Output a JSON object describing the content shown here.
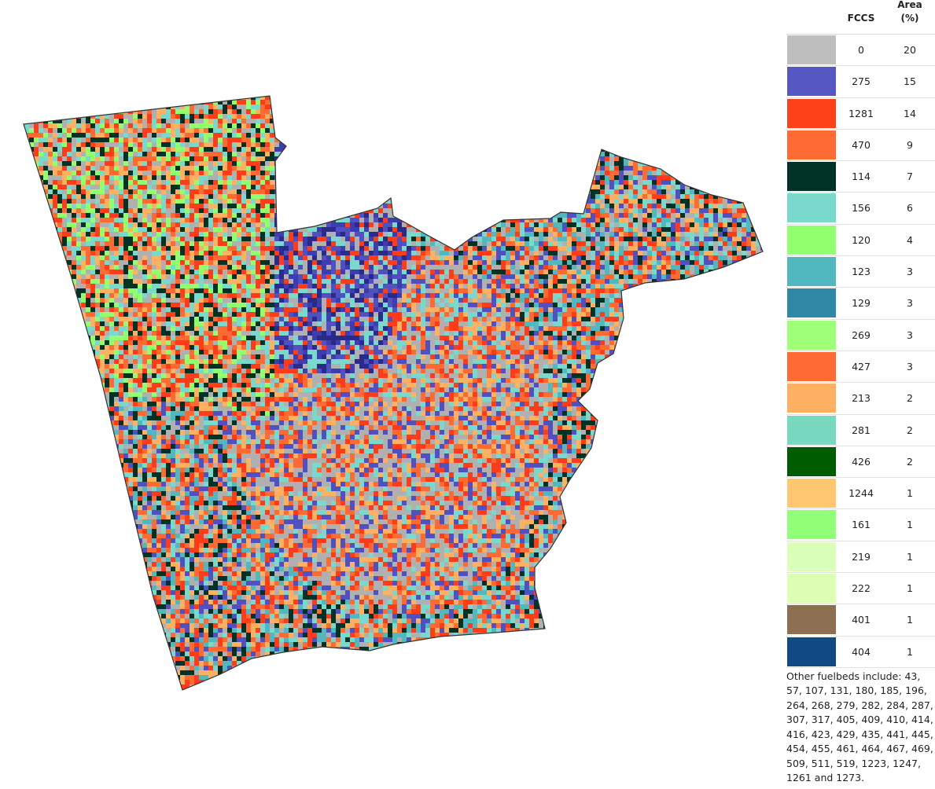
{
  "legend": {
    "header_fccs": "FCCS",
    "header_area_line1": "Area",
    "header_area_line2": "(%)",
    "rows": [
      {
        "fccs": "0",
        "area": "20",
        "color": "#bebebe"
      },
      {
        "fccs": "275",
        "area": "15",
        "color": "#5757c4"
      },
      {
        "fccs": "1281",
        "area": "14",
        "color": "#ff4117"
      },
      {
        "fccs": "470",
        "area": "9",
        "color": "#ff6a33"
      },
      {
        "fccs": "114",
        "area": "7",
        "color": "#003326"
      },
      {
        "fccs": "156",
        "area": "6",
        "color": "#78d9cc"
      },
      {
        "fccs": "120",
        "area": "4",
        "color": "#91ff6e"
      },
      {
        "fccs": "123",
        "area": "3",
        "color": "#52b8c0"
      },
      {
        "fccs": "129",
        "area": "3",
        "color": "#2e88a6"
      },
      {
        "fccs": "269",
        "area": "3",
        "color": "#a0ff78"
      },
      {
        "fccs": "427",
        "area": "3",
        "color": "#ff6a33"
      },
      {
        "fccs": "213",
        "area": "2",
        "color": "#ffb061"
      },
      {
        "fccs": "281",
        "area": "2",
        "color": "#78d9c0"
      },
      {
        "fccs": "426",
        "area": "2",
        "color": "#005c00"
      },
      {
        "fccs": "1244",
        "area": "1",
        "color": "#ffc770"
      },
      {
        "fccs": "161",
        "area": "1",
        "color": "#91ff78"
      },
      {
        "fccs": "219",
        "area": "1",
        "color": "#d9ffb8"
      },
      {
        "fccs": "222",
        "area": "1",
        "color": "#dcffb4"
      },
      {
        "fccs": "401",
        "area": "1",
        "color": "#8c7051"
      },
      {
        "fccs": "404",
        "area": "1",
        "color": "#124a85"
      }
    ],
    "other_note": "Other fuelbeds include: 43, 57, 107, 131, 180, 185, 196, 264, 268, 279, 282, 284, 287, 307, 317, 405, 409, 410, 414, 416, 423, 429, 435, 441, 445, 454, 455, 461, 464, 467, 469, 509, 511, 519, 1223, 1247, 1261 and 1273."
  },
  "map": {
    "outline_color": "#333333",
    "palette_main": [
      "#b0b0b0",
      "#ff3b1a",
      "#5050c0",
      "#ff6a33",
      "#78d9cc",
      "#ffb061",
      "#003326",
      "#52b8c0"
    ],
    "palette_northwest": [
      "#91ff6e",
      "#ff3b1a",
      "#78d9cc",
      "#b0b0b0",
      "#003326",
      "#ff6a33",
      "#ffb061"
    ],
    "palette_central": [
      "#b0b0b0",
      "#b0b0b0",
      "#ff6a33",
      "#ffb061",
      "#5050c0",
      "#78d9cc",
      "#ff3b1a"
    ],
    "palette_north": [
      "#3d3db0",
      "#5050c0",
      "#2a2a8a",
      "#ff3b1a",
      "#78d9cc",
      "#b0b0b0"
    ]
  }
}
